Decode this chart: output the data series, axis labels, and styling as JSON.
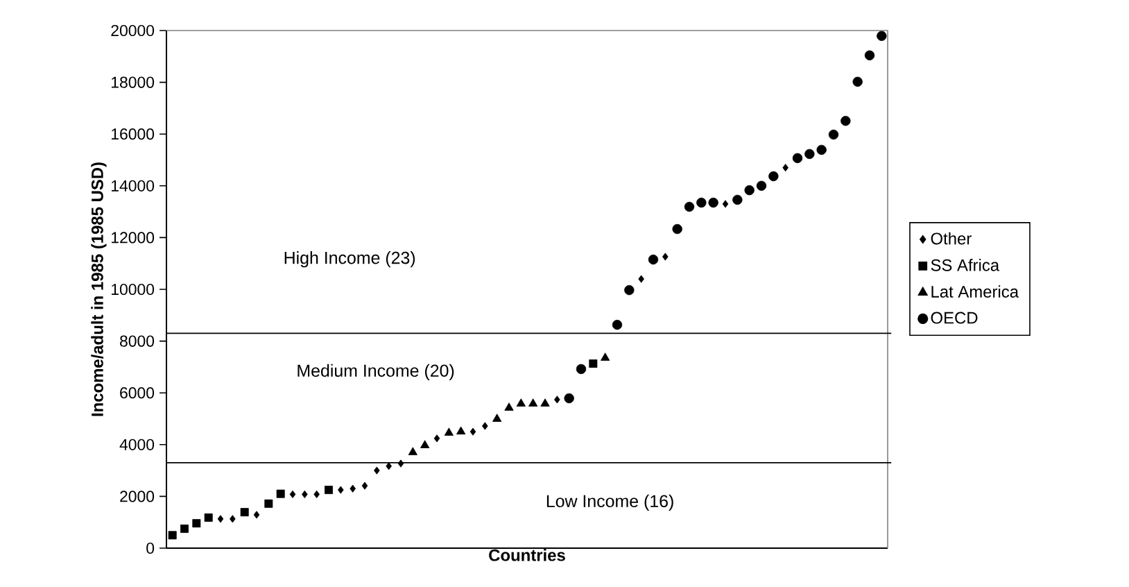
{
  "chart_data": {
    "type": "scatter",
    "xlabel": "Countries",
    "ylabel": "Income/adult in 1985 (1985 USD)",
    "categories": [
      null,
      null,
      null,
      null,
      null,
      null,
      null,
      null,
      null,
      null,
      null,
      null,
      null,
      null,
      null,
      null,
      null,
      null,
      null,
      null,
      null,
      null,
      null,
      null,
      null,
      null,
      null,
      null,
      null,
      null,
      null,
      null,
      null,
      null,
      null,
      null,
      null,
      null,
      null,
      null,
      null,
      null,
      null,
      null,
      null,
      null,
      null,
      null,
      null,
      null,
      null,
      null,
      null,
      null,
      null,
      null,
      null,
      null,
      null,
      null
    ],
    "series": [
      {
        "name": "Other",
        "color": "#000000",
        "marker": "diamond",
        "values": [
          null,
          null,
          null,
          null,
          1130,
          1130,
          null,
          1290,
          null,
          null,
          2080,
          2080,
          2080,
          null,
          2250,
          2300,
          2410,
          3000,
          3170,
          3270,
          null,
          null,
          4240,
          null,
          null,
          4500,
          4720,
          null,
          null,
          null,
          null,
          null,
          5740,
          null,
          null,
          null,
          null,
          null,
          null,
          10400,
          null,
          11260,
          null,
          null,
          null,
          null,
          13300,
          null,
          null,
          null,
          null,
          14700,
          null,
          null,
          null,
          null,
          null,
          null,
          null,
          null
        ]
      },
      {
        "name": "SS Africa",
        "color": "#000000",
        "marker": "square",
        "values": [
          500,
          750,
          960,
          1180,
          null,
          null,
          1390,
          null,
          1720,
          2100,
          null,
          null,
          null,
          2250,
          null,
          null,
          null,
          null,
          null,
          null,
          null,
          null,
          null,
          null,
          null,
          null,
          null,
          null,
          null,
          null,
          null,
          null,
          null,
          null,
          null,
          7130,
          null,
          null,
          null,
          null,
          null,
          null,
          null,
          null,
          null,
          null,
          null,
          null,
          null,
          null,
          null,
          null,
          null,
          null,
          null,
          null,
          null,
          null,
          null,
          null
        ]
      },
      {
        "name": "Lat America",
        "color": "#000000",
        "marker": "triangle",
        "values": [
          null,
          null,
          null,
          null,
          null,
          null,
          null,
          null,
          null,
          null,
          null,
          null,
          null,
          null,
          null,
          null,
          null,
          null,
          null,
          null,
          3700,
          3970,
          null,
          4450,
          4500,
          null,
          null,
          4990,
          5420,
          5580,
          5580,
          5580,
          null,
          null,
          null,
          null,
          7350,
          null,
          null,
          null,
          null,
          null,
          null,
          null,
          null,
          null,
          null,
          null,
          null,
          null,
          null,
          null,
          null,
          null,
          null,
          null,
          null,
          null,
          null,
          null
        ]
      },
      {
        "name": "OECD",
        "color": "#000000",
        "marker": "circle",
        "values": [
          null,
          null,
          null,
          null,
          null,
          null,
          null,
          null,
          null,
          null,
          null,
          null,
          null,
          null,
          null,
          null,
          null,
          null,
          null,
          null,
          null,
          null,
          null,
          null,
          null,
          null,
          null,
          null,
          null,
          null,
          null,
          null,
          null,
          5790,
          6920,
          null,
          null,
          8630,
          9970,
          null,
          11150,
          null,
          12330,
          13190,
          13350,
          13350,
          null,
          13460,
          13830,
          14000,
          14370,
          null,
          15070,
          15230,
          15390,
          15980,
          16510,
          18020,
          19040,
          19790
        ]
      }
    ],
    "ylim": [
      0,
      20000
    ],
    "yticks": [
      0,
      2000,
      4000,
      6000,
      8000,
      10000,
      12000,
      14000,
      16000,
      18000,
      20000
    ],
    "ref_lines": [
      {
        "axis": "y",
        "value": 8300,
        "color": "#000000"
      },
      {
        "axis": "y",
        "value": 3300,
        "color": "#000000"
      }
    ],
    "annotations": [
      "High Income (23)",
      "Medium Income (20)",
      "Low Income (16)"
    ],
    "legend": "right",
    "grid": false,
    "tick_labels": "y"
  }
}
